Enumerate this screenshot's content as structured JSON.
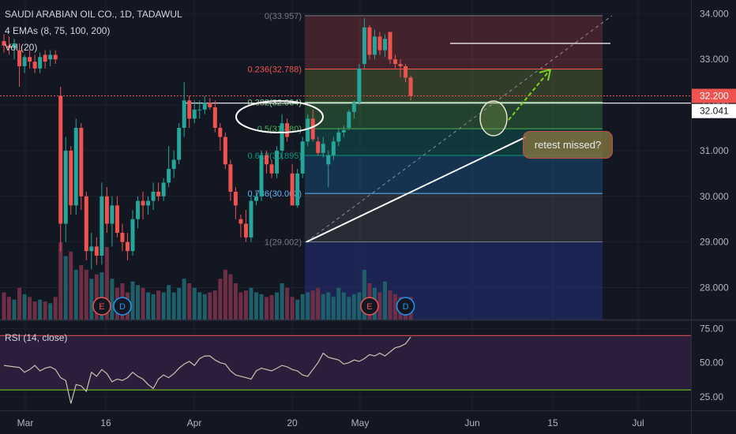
{
  "header": {
    "symbol_line": "SAUDI ARABIAN OIL CO., 1D, TADAWUL",
    "ema_line": "4 EMAs (8, 75, 100, 200)",
    "vol_line": "Vol (20)"
  },
  "rsi_panel": {
    "label": "RSI (14, close)"
  },
  "annotation": {
    "text": "retest missed?"
  },
  "colors": {
    "background": "#131722",
    "grid": "#1e222d",
    "up": "#26a69a",
    "down": "#ef5350",
    "vol_up": "#1f5f6a",
    "vol_down": "#6e2f46",
    "rsi_line": "#c9c2b0",
    "rsi_band": "#2a1e3a",
    "price_tag": "#ef5350"
  },
  "chart_data": [
    {
      "type": "candlestick",
      "title": "SAUDI ARABIAN OIL CO., 1D, TADAWUL",
      "ylim": [
        27.3,
        34.3
      ],
      "y_ticks": [
        28.0,
        29.0,
        30.0,
        31.0,
        32.0,
        33.0,
        34.0
      ],
      "y_tick_labels": [
        "28.000",
        "29.000",
        "30.000",
        "31.000",
        "32.000",
        "33.000",
        "34.000"
      ],
      "x_tick_labels": [
        "Mar",
        "16",
        "Apr",
        "20",
        "May",
        "Jun",
        "15",
        "Jul"
      ],
      "price_labels": [
        {
          "label": "32.200",
          "value": 32.2,
          "role": "last-price"
        },
        {
          "label": "32.041",
          "value": 32.041,
          "role": "horizontal-line"
        }
      ],
      "fibonacci": {
        "levels": [
          {
            "ratio": 0,
            "price": 33.957,
            "label": "0(33.957)"
          },
          {
            "ratio": 0.236,
            "price": 32.788,
            "label": "0.236(32.788)"
          },
          {
            "ratio": 0.382,
            "price": 32.064,
            "label": "0.382(32.064)"
          },
          {
            "ratio": 0.5,
            "price": 31.48,
            "label": "0.5(31.480)"
          },
          {
            "ratio": 0.618,
            "price": 30.895,
            "label": "0.618(30.895)"
          },
          {
            "ratio": 0.786,
            "price": 30.063,
            "label": "0.786(30.063)"
          },
          {
            "ratio": 1,
            "price": 29.002,
            "label": "1(29.002)"
          }
        ],
        "colors": [
          "#787b86",
          "#ef5350",
          "#81c784",
          "#4caf50",
          "#089981",
          "#64b5f6",
          "#787b86"
        ],
        "extension_color": "#1a237e"
      },
      "horizontal_lines": [
        32.041,
        33.35
      ],
      "candles": [
        {
          "o": 33.4,
          "h": 33.55,
          "l": 33.15,
          "c": 33.3
        },
        {
          "o": 33.3,
          "h": 33.5,
          "l": 33.1,
          "c": 33.25
        },
        {
          "o": 33.25,
          "h": 33.45,
          "l": 33.0,
          "c": 33.35
        },
        {
          "o": 33.2,
          "h": 33.35,
          "l": 32.4,
          "c": 32.85
        },
        {
          "o": 32.85,
          "h": 33.1,
          "l": 32.7,
          "c": 33.05
        },
        {
          "o": 33.05,
          "h": 33.2,
          "l": 32.8,
          "c": 32.95
        },
        {
          "o": 32.95,
          "h": 33.1,
          "l": 32.7,
          "c": 32.8
        },
        {
          "o": 32.8,
          "h": 33.15,
          "l": 32.7,
          "c": 33.05
        },
        {
          "o": 33.1,
          "h": 33.2,
          "l": 32.8,
          "c": 32.95
        },
        {
          "o": 33.0,
          "h": 33.2,
          "l": 32.85,
          "c": 33.1
        },
        {
          "o": 33.1,
          "h": 33.2,
          "l": 32.9,
          "c": 33.0
        },
        {
          "o": 32.2,
          "h": 32.4,
          "l": 28.8,
          "c": 29.4
        },
        {
          "o": 29.4,
          "h": 31.3,
          "l": 29.0,
          "c": 31.0
        },
        {
          "o": 31.0,
          "h": 31.1,
          "l": 29.6,
          "c": 29.8
        },
        {
          "o": 29.8,
          "h": 31.7,
          "l": 29.6,
          "c": 31.5
        },
        {
          "o": 31.5,
          "h": 31.6,
          "l": 29.7,
          "c": 30.0
        },
        {
          "o": 30.0,
          "h": 30.1,
          "l": 28.6,
          "c": 28.8
        },
        {
          "o": 28.8,
          "h": 29.2,
          "l": 28.4,
          "c": 28.9
        },
        {
          "o": 28.9,
          "h": 29.1,
          "l": 28.5,
          "c": 28.7
        },
        {
          "o": 28.7,
          "h": 30.3,
          "l": 28.5,
          "c": 30.0
        },
        {
          "o": 30.0,
          "h": 30.2,
          "l": 29.2,
          "c": 29.4
        },
        {
          "o": 29.4,
          "h": 30.0,
          "l": 28.9,
          "c": 29.8
        },
        {
          "o": 29.8,
          "h": 30.0,
          "l": 29.1,
          "c": 29.2
        },
        {
          "o": 29.2,
          "h": 29.4,
          "l": 28.8,
          "c": 29.0
        },
        {
          "o": 29.0,
          "h": 29.2,
          "l": 28.6,
          "c": 28.8
        },
        {
          "o": 28.8,
          "h": 29.7,
          "l": 28.7,
          "c": 29.5
        },
        {
          "o": 29.5,
          "h": 30.0,
          "l": 29.3,
          "c": 29.9
        },
        {
          "o": 29.9,
          "h": 30.1,
          "l": 29.5,
          "c": 29.8
        },
        {
          "o": 29.8,
          "h": 30.0,
          "l": 29.6,
          "c": 29.9
        },
        {
          "o": 29.9,
          "h": 30.3,
          "l": 29.7,
          "c": 30.1
        },
        {
          "o": 30.1,
          "h": 30.3,
          "l": 29.9,
          "c": 30.0
        },
        {
          "o": 30.0,
          "h": 30.4,
          "l": 29.9,
          "c": 30.3
        },
        {
          "o": 30.3,
          "h": 31.1,
          "l": 30.2,
          "c": 30.6
        },
        {
          "o": 30.6,
          "h": 31.0,
          "l": 30.4,
          "c": 30.8
        },
        {
          "o": 30.8,
          "h": 31.6,
          "l": 30.7,
          "c": 31.5
        },
        {
          "o": 31.5,
          "h": 32.5,
          "l": 31.3,
          "c": 32.1
        },
        {
          "o": 32.1,
          "h": 32.2,
          "l": 31.5,
          "c": 31.7
        },
        {
          "o": 31.7,
          "h": 32.1,
          "l": 31.6,
          "c": 31.9
        },
        {
          "o": 31.9,
          "h": 32.1,
          "l": 31.7,
          "c": 31.9
        },
        {
          "o": 31.9,
          "h": 32.2,
          "l": 31.8,
          "c": 32.05
        },
        {
          "o": 32.05,
          "h": 32.15,
          "l": 31.9,
          "c": 31.95
        },
        {
          "o": 31.95,
          "h": 32.1,
          "l": 31.4,
          "c": 31.5
        },
        {
          "o": 31.5,
          "h": 31.6,
          "l": 31.0,
          "c": 31.3
        },
        {
          "o": 31.3,
          "h": 31.4,
          "l": 30.6,
          "c": 30.7
        },
        {
          "o": 30.7,
          "h": 30.8,
          "l": 29.9,
          "c": 30.1
        },
        {
          "o": 30.1,
          "h": 30.2,
          "l": 29.5,
          "c": 29.8
        },
        {
          "o": 29.5,
          "h": 29.6,
          "l": 29.1,
          "c": 29.4
        },
        {
          "o": 29.4,
          "h": 29.7,
          "l": 29.0,
          "c": 29.1
        },
        {
          "o": 29.1,
          "h": 30.0,
          "l": 29.0,
          "c": 29.9
        },
        {
          "o": 29.9,
          "h": 30.1,
          "l": 29.8,
          "c": 30.0
        },
        {
          "o": 30.0,
          "h": 31.0,
          "l": 29.9,
          "c": 30.9
        },
        {
          "o": 30.9,
          "h": 31.0,
          "l": 30.5,
          "c": 30.7
        },
        {
          "o": 30.7,
          "h": 30.8,
          "l": 30.4,
          "c": 30.5
        },
        {
          "o": 30.5,
          "h": 31.1,
          "l": 30.4,
          "c": 31.0
        },
        {
          "o": 31.0,
          "h": 31.8,
          "l": 30.8,
          "c": 31.6
        },
        {
          "o": 31.6,
          "h": 31.7,
          "l": 31.2,
          "c": 31.3
        },
        {
          "o": 30.5,
          "h": 30.7,
          "l": 29.8,
          "c": 29.8
        },
        {
          "o": 29.8,
          "h": 30.6,
          "l": 29.75,
          "c": 30.5
        },
        {
          "o": 30.5,
          "h": 31.3,
          "l": 30.4,
          "c": 31.2
        },
        {
          "o": 31.2,
          "h": 31.8,
          "l": 31.1,
          "c": 31.7
        },
        {
          "o": 31.7,
          "h": 31.9,
          "l": 31.2,
          "c": 31.25
        },
        {
          "o": 31.2,
          "h": 31.3,
          "l": 30.9,
          "c": 30.95
        },
        {
          "o": 30.95,
          "h": 31.3,
          "l": 30.85,
          "c": 31.15
        },
        {
          "o": 30.7,
          "h": 31.0,
          "l": 30.2,
          "c": 30.9
        },
        {
          "o": 30.9,
          "h": 31.3,
          "l": 30.8,
          "c": 31.2
        },
        {
          "o": 31.2,
          "h": 31.5,
          "l": 31.1,
          "c": 31.4
        },
        {
          "o": 31.4,
          "h": 31.55,
          "l": 31.3,
          "c": 31.45
        },
        {
          "o": 31.5,
          "h": 31.9,
          "l": 31.45,
          "c": 31.85
        },
        {
          "o": 31.85,
          "h": 32.1,
          "l": 31.7,
          "c": 32.05
        },
        {
          "o": 32.05,
          "h": 32.9,
          "l": 32.0,
          "c": 32.8
        },
        {
          "o": 32.9,
          "h": 33.9,
          "l": 32.8,
          "c": 33.7
        },
        {
          "o": 33.7,
          "h": 33.75,
          "l": 33.0,
          "c": 33.1
        },
        {
          "o": 33.1,
          "h": 33.65,
          "l": 33.0,
          "c": 33.5
        },
        {
          "o": 33.5,
          "h": 33.6,
          "l": 33.1,
          "c": 33.2
        },
        {
          "o": 33.2,
          "h": 33.55,
          "l": 33.05,
          "c": 33.45
        },
        {
          "o": 33.6,
          "h": 33.6,
          "l": 32.9,
          "c": 33.0
        },
        {
          "o": 33.0,
          "h": 33.1,
          "l": 32.8,
          "c": 32.9
        },
        {
          "o": 32.9,
          "h": 33.0,
          "l": 32.6,
          "c": 32.85
        },
        {
          "o": 32.85,
          "h": 32.9,
          "l": 32.5,
          "c": 32.6
        },
        {
          "o": 32.6,
          "h": 32.65,
          "l": 32.1,
          "c": 32.2
        }
      ],
      "volume": [
        0.3,
        0.25,
        0.22,
        0.35,
        0.28,
        0.25,
        0.2,
        0.22,
        0.2,
        0.18,
        0.25,
        0.85,
        0.7,
        0.75,
        0.55,
        0.6,
        0.55,
        0.45,
        0.5,
        0.52,
        0.8,
        0.45,
        0.35,
        0.4,
        0.3,
        0.42,
        0.38,
        0.35,
        0.3,
        0.28,
        0.32,
        0.3,
        0.38,
        0.3,
        0.35,
        0.45,
        0.4,
        0.35,
        0.3,
        0.28,
        0.3,
        0.32,
        0.45,
        0.55,
        0.5,
        0.4,
        0.3,
        0.32,
        0.35,
        0.3,
        0.28,
        0.25,
        0.27,
        0.3,
        0.4,
        0.35,
        0.25,
        0.22,
        0.28,
        0.3,
        0.32,
        0.35,
        0.28,
        0.3,
        0.25,
        0.35,
        0.3,
        0.25,
        0.28,
        0.3,
        0.55,
        0.4,
        0.35,
        0.3,
        0.42,
        0.32,
        0.28,
        0.25,
        0.2,
        0.25
      ],
      "earnings_markers": [
        {
          "index": 19,
          "label": "E"
        },
        {
          "index": 71,
          "label": "E"
        }
      ],
      "dividend_markers": [
        {
          "index": 23,
          "label": "D"
        },
        {
          "index": 78,
          "label": "D"
        }
      ]
    },
    {
      "type": "line",
      "title": "RSI (14, close)",
      "ylim": [
        15,
        80
      ],
      "y_ticks": [
        25,
        50,
        75
      ],
      "y_tick_labels": [
        "25.00",
        "50.00",
        "75.00"
      ],
      "band": [
        30,
        70
      ],
      "values": [
        48,
        47.5,
        47,
        46.5,
        43,
        45,
        48,
        44,
        46,
        47,
        45,
        39,
        37,
        20,
        34,
        33,
        29,
        43,
        40,
        45,
        42,
        36,
        38,
        37,
        39,
        43,
        40,
        38,
        34,
        31,
        38,
        41,
        39,
        42,
        46,
        49,
        51,
        48,
        53,
        55,
        55,
        52,
        50,
        49,
        44,
        41,
        40,
        39,
        38,
        44,
        46,
        45,
        44,
        46,
        48,
        47,
        45,
        44,
        41,
        40,
        45,
        50,
        57,
        54,
        53,
        52,
        49,
        50,
        52,
        51,
        53,
        56,
        55,
        57,
        55,
        58,
        61,
        62,
        64,
        69
      ]
    }
  ]
}
